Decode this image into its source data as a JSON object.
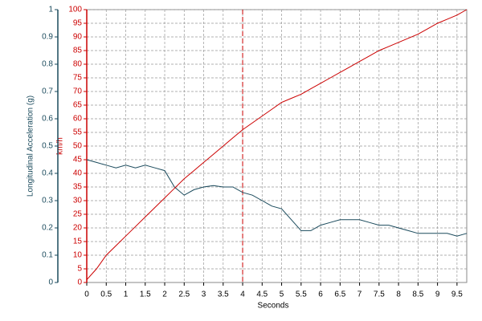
{
  "chart_data": {
    "type": "line",
    "x_label": "Seconds",
    "y_label": "Longitudinal Acceleration (g)",
    "y2_label": "km/h",
    "x": [
      0,
      0.25,
      0.5,
      0.75,
      1,
      1.25,
      1.5,
      1.75,
      2,
      2.25,
      2.5,
      2.75,
      3,
      3.25,
      3.5,
      3.75,
      4,
      4.25,
      4.5,
      4.75,
      5,
      5.25,
      5.5,
      5.75,
      6,
      6.25,
      6.5,
      6.75,
      7,
      7.25,
      7.5,
      7.75,
      8,
      8.25,
      8.5,
      8.75,
      9,
      9.25,
      9.5,
      9.75
    ],
    "series": [
      {
        "name": "Longitudinal Acceleration (g)",
        "color": "#1a4a5c",
        "axis": "y",
        "values": [
          0.45,
          0.44,
          0.43,
          0.42,
          0.43,
          0.42,
          0.43,
          0.42,
          0.41,
          0.35,
          0.32,
          0.34,
          0.35,
          0.355,
          0.35,
          0.35,
          0.33,
          0.32,
          0.3,
          0.28,
          0.27,
          0.23,
          0.19,
          0.19,
          0.21,
          0.22,
          0.23,
          0.23,
          0.23,
          0.22,
          0.21,
          0.21,
          0.2,
          0.19,
          0.18,
          0.18,
          0.18,
          0.18,
          0.17,
          0.18
        ]
      },
      {
        "name": "km/h",
        "color": "#cc0000",
        "axis": "y2",
        "values": [
          1,
          5,
          10,
          13.5,
          17,
          20.5,
          24,
          27.5,
          31,
          34.5,
          38,
          41,
          44,
          47,
          50,
          53,
          56,
          58.5,
          61,
          63.5,
          66,
          67.5,
          69,
          71,
          73,
          75,
          77,
          79,
          81,
          83,
          85,
          86.5,
          88,
          89.5,
          91,
          93,
          95,
          96.5,
          98,
          100
        ]
      }
    ],
    "xlim": [
      0,
      9.75
    ],
    "xticks": [
      0,
      0.5,
      1,
      1.5,
      2,
      2.5,
      3,
      3.5,
      4,
      4.5,
      5,
      5.5,
      6,
      6.5,
      7,
      7.5,
      8,
      8.5,
      9,
      9.5
    ],
    "ylim": [
      0,
      1
    ],
    "yticks": [
      0,
      0.1,
      0.2,
      0.3,
      0.4,
      0.5,
      0.6,
      0.7,
      0.8,
      0.9,
      1
    ],
    "y2lim": [
      0,
      100
    ],
    "y2ticks": [
      0,
      5,
      10,
      15,
      20,
      25,
      30,
      35,
      40,
      45,
      50,
      55,
      60,
      65,
      70,
      75,
      80,
      85,
      90,
      95,
      100
    ],
    "marker_x": 4,
    "marker_color": "#cc0000",
    "grid": true
  }
}
